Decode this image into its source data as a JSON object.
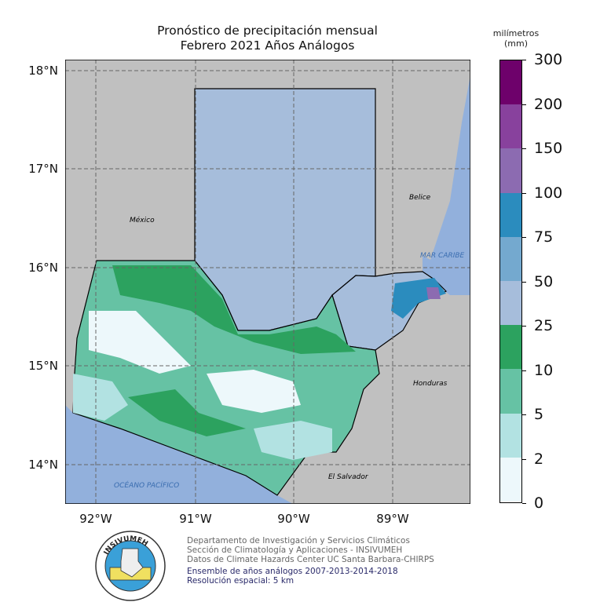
{
  "title": {
    "line1": "Pronóstico de precipitación mensual",
    "line2": "Febrero 2021  Años Análogos"
  },
  "map": {
    "lat_labels": [
      "18°N",
      "17°N",
      "16°N",
      "15°N",
      "14°N"
    ],
    "lon_labels": [
      "92°W",
      "91°W",
      "90°W",
      "89°W"
    ],
    "place_labels": {
      "mexico": "México",
      "belice": "Belice",
      "mar_caribe": "MAR CARIBE",
      "honduras": "Honduras",
      "el_salvador": "El Salvador",
      "oceano": "OCÉANO PACÍFICO"
    },
    "colors": {
      "land": "#c0c0c0",
      "ocean": "#92b0dc"
    }
  },
  "colorbar": {
    "title_line1": "milímetros",
    "title_line2": "(mm)",
    "ticks": [
      "0",
      "2",
      "5",
      "10",
      "25",
      "50",
      "75",
      "100",
      "150",
      "200",
      "300"
    ],
    "colors": [
      "#edf8fb",
      "#b2e2e2",
      "#66c2a4",
      "#2ca25f",
      "#a6bddb",
      "#74a9cf",
      "#2b8cbe",
      "#8c6bb1",
      "#88419d",
      "#6e016b"
    ]
  },
  "footer": {
    "line1": "Departamento de Investigación y Servicios Climáticos",
    "line2": "Sección de Climatología y Aplicaciones - INSIVUMEH",
    "line3": "Datos de Climate Hazards Center UC Santa Barbara-CHIRPS",
    "line4": "Ensemble de años análogos 2007-2013-2014-2018",
    "line5": "Resolución espacial: 5 km",
    "logo_text": "INSIVUMEH"
  }
}
